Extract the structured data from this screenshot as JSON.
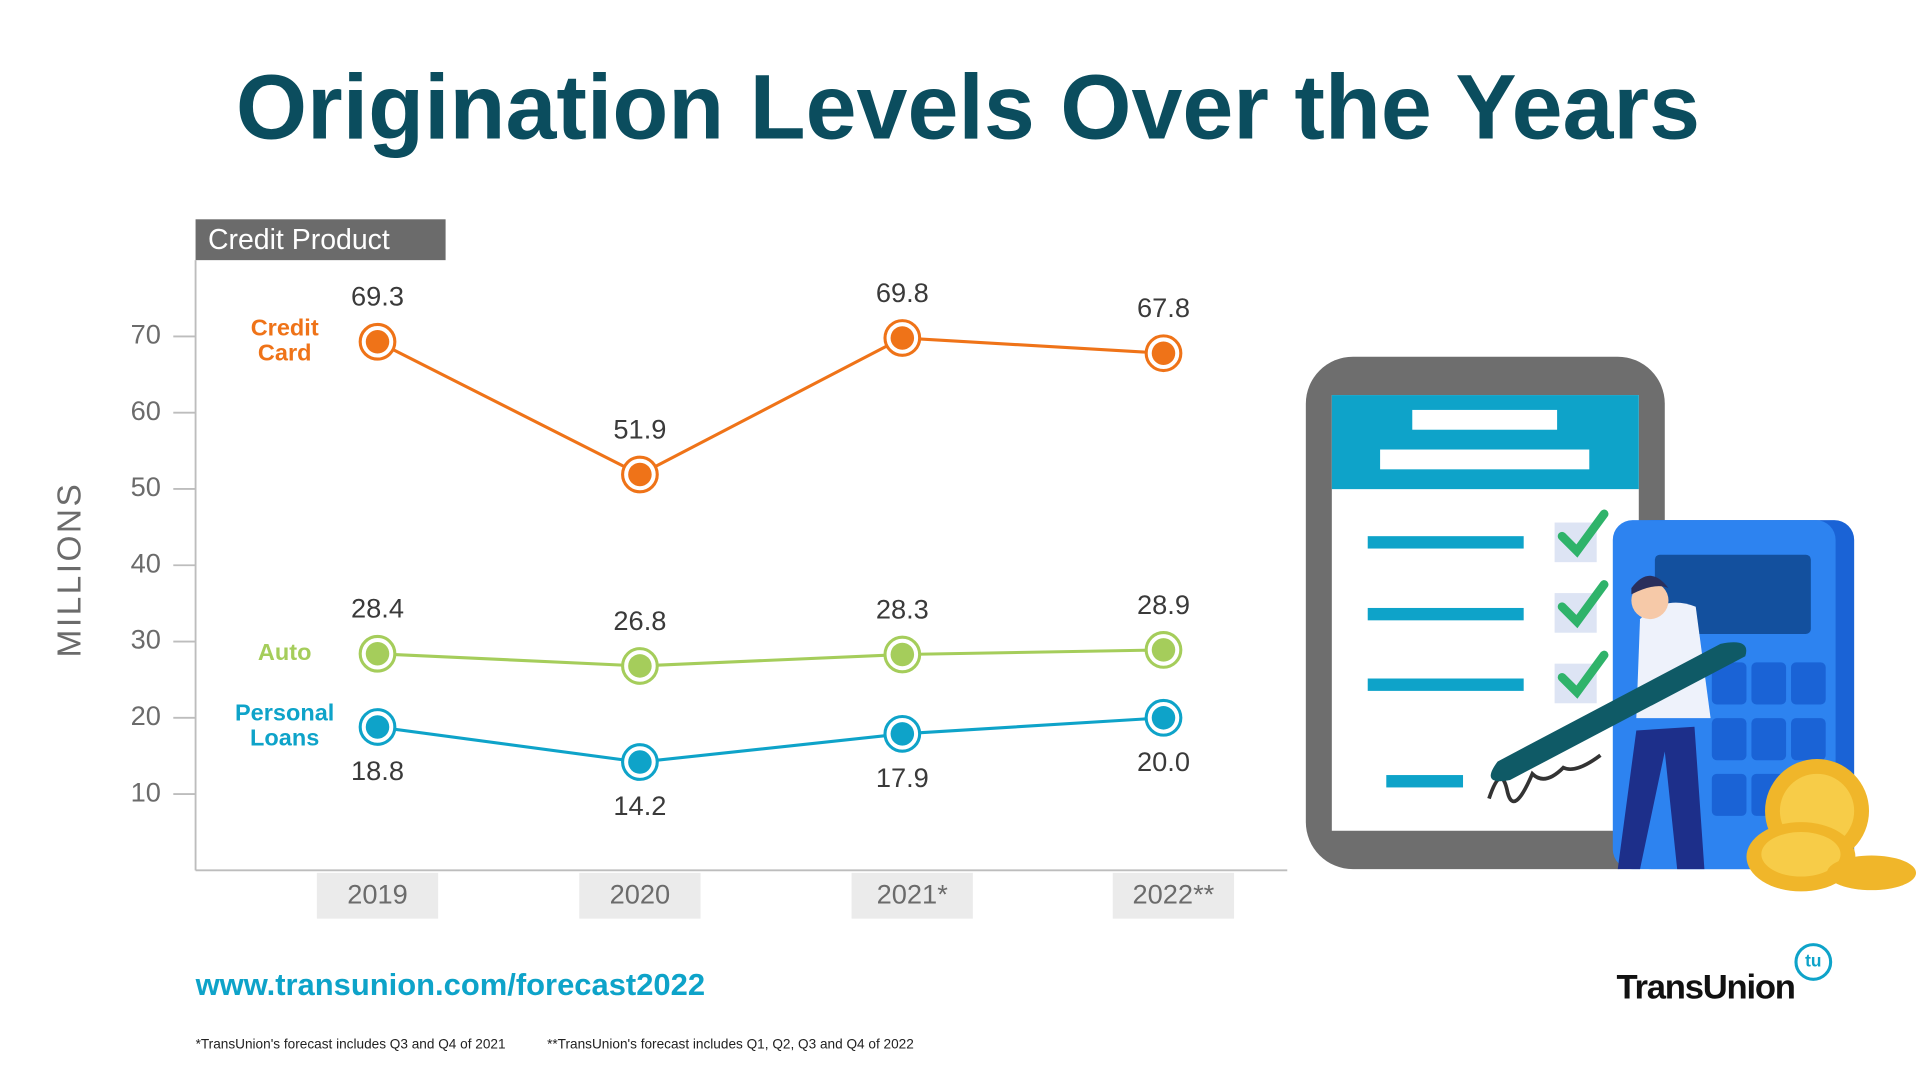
{
  "chart_data": {
    "type": "line",
    "title": "Origination Levels Over the Years",
    "subtitle": "Credit Product",
    "ylabel": "MILLIONS",
    "categories": [
      "2019",
      "2020",
      "2021*",
      "2022**"
    ],
    "series": [
      {
        "name": "Credit Card",
        "color": "#ef7318",
        "values": [
          69.3,
          51.9,
          69.8,
          67.8
        ]
      },
      {
        "name": "Auto",
        "color": "#a5cd5b",
        "values": [
          28.4,
          26.8,
          28.3,
          28.9
        ]
      },
      {
        "name": "Personal Loans",
        "color": "#0ea3c9",
        "values": [
          18.8,
          14.2,
          17.9,
          20.0
        ],
        "value_labels": [
          "18.8",
          "14.2",
          "17.9",
          "20.0"
        ]
      }
    ],
    "ylim": [
      0,
      80
    ],
    "yticks": [
      10,
      20,
      30,
      40,
      50,
      60,
      70
    ]
  },
  "source_url": "www.transunion.com/forecast2022",
  "footnotes": [
    "*TransUnion's forecast includes Q3 and Q4 of 2021",
    "**TransUnion's forecast includes Q1, Q2, Q3 and Q4 of 2022"
  ],
  "logo": {
    "text": "TransUnion",
    "mark": "tu"
  }
}
